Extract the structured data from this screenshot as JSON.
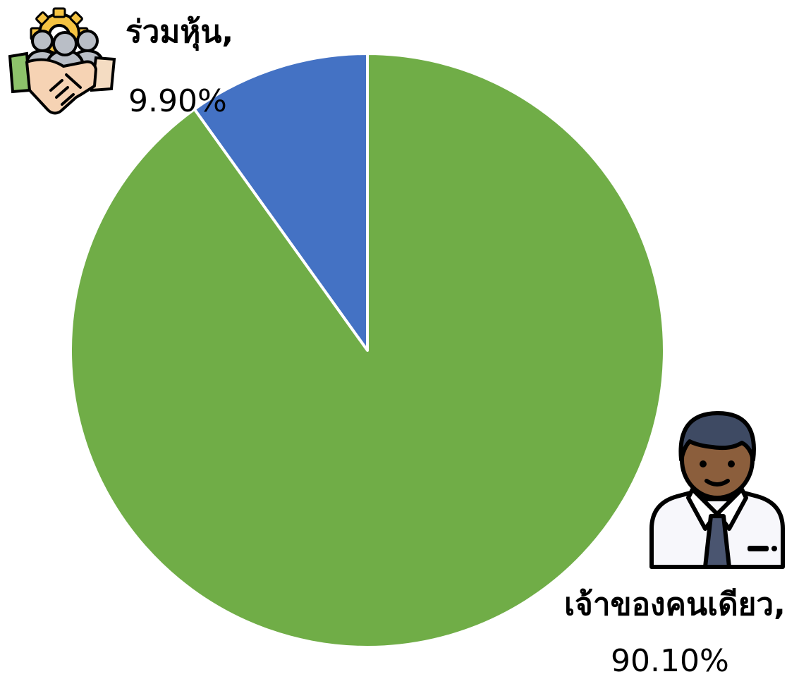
{
  "chart_data": {
    "type": "pie",
    "start_angle_deg": 0,
    "direction": "counterclockwise",
    "legend": "none",
    "slices": [
      {
        "label": "ร่วมหุ้น,",
        "value": 9.9,
        "value_label": "9.90%",
        "color": "#4472C4",
        "icon": "partnership-handshake-icon"
      },
      {
        "label": "เจ้าของคนเดียว,",
        "value": 90.1,
        "value_label": "90.10%",
        "color": "#70AD47",
        "icon": "businessman-icon"
      }
    ]
  }
}
